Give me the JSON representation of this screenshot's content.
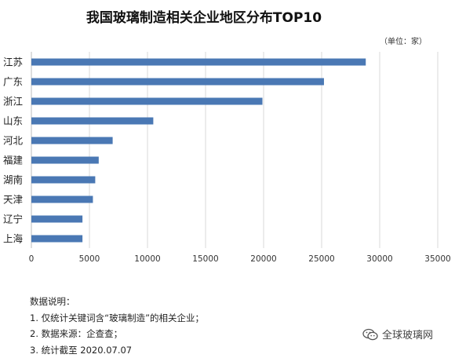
{
  "chart_data": {
    "type": "bar",
    "orientation": "horizontal",
    "title": "我国玻璃制造相关企业地区分布TOP10",
    "unit_note": "（单位：家）",
    "categories": [
      "江苏",
      "广东",
      "浙江",
      "山东",
      "河北",
      "福建",
      "湖南",
      "天津",
      "辽宁",
      "上海"
    ],
    "values": [
      28800,
      25200,
      19900,
      10500,
      7000,
      5800,
      5500,
      5300,
      4400,
      4400
    ],
    "x_ticks": [
      "0",
      "5000",
      "10000",
      "15000",
      "20000",
      "25000",
      "30000",
      "35000"
    ],
    "xlim": [
      0,
      35000
    ],
    "grid": true,
    "bar_color": "#4a78b4"
  },
  "notes": {
    "heading": "数据说明：",
    "lines": [
      "1. 仅统计关键词含“玻璃制造”的相关企业；",
      "2. 数据来源：企查查；",
      "3. 统计截至 2020.07.07"
    ]
  },
  "watermark": {
    "text": "全球玻璃网",
    "icon": "wechat-icon"
  }
}
